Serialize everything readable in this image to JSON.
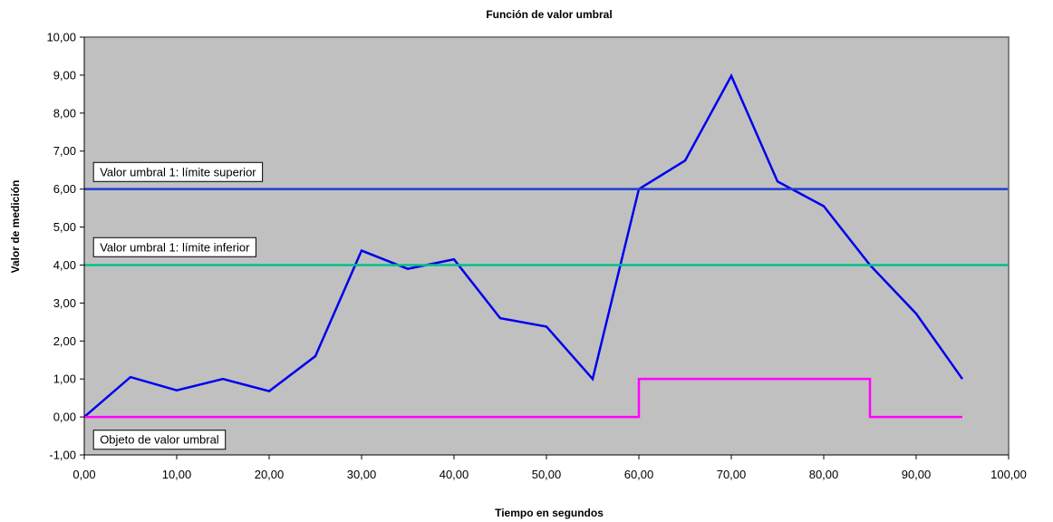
{
  "chart_data": {
    "type": "line",
    "title": "Función de valor umbral",
    "xlabel": "Tiempo en segundos",
    "ylabel": "Valor de medición",
    "xlim": [
      0,
      100
    ],
    "ylim": [
      -1,
      10
    ],
    "x_ticks": [
      "0,00",
      "10,00",
      "20,00",
      "30,00",
      "40,00",
      "50,00",
      "60,00",
      "70,00",
      "80,00",
      "90,00",
      "100,00"
    ],
    "y_ticks": [
      "-1,00",
      "0,00",
      "1,00",
      "2,00",
      "3,00",
      "4,00",
      "5,00",
      "6,00",
      "7,00",
      "8,00",
      "9,00",
      "10,00"
    ],
    "grid": false,
    "background_color": "#c0c0c0",
    "series": [
      {
        "color": "#0000ee",
        "x": [
          0,
          5,
          10,
          15,
          20,
          25,
          30,
          35,
          40,
          45,
          50,
          55,
          60,
          65,
          70,
          75,
          80,
          85,
          90,
          95
        ],
        "y": [
          0.0,
          1.05,
          0.7,
          1.0,
          0.68,
          1.6,
          4.38,
          3.9,
          4.15,
          2.6,
          2.38,
          1.0,
          6.0,
          6.75,
          8.98,
          6.2,
          5.55,
          4.0,
          2.72,
          1.0
        ]
      },
      {
        "color": "#1e3fd6",
        "x": [
          0,
          100
        ],
        "y": [
          6.0,
          6.0
        ]
      },
      {
        "color": "#00c08a",
        "x": [
          0,
          100
        ],
        "y": [
          4.0,
          4.0
        ]
      },
      {
        "color": "#ff00ff",
        "x": [
          0,
          60,
          60,
          85,
          85,
          95
        ],
        "y": [
          0,
          0,
          1,
          1,
          0,
          0
        ]
      }
    ],
    "annotations": [
      {
        "text": "Valor umbral 1: límite superior",
        "x": 1,
        "y": 6.45
      },
      {
        "text": "Valor umbral 1: límite inferior",
        "x": 1,
        "y": 4.47
      },
      {
        "text": "Objeto de valor umbral",
        "x": 1,
        "y": -0.6
      }
    ]
  }
}
